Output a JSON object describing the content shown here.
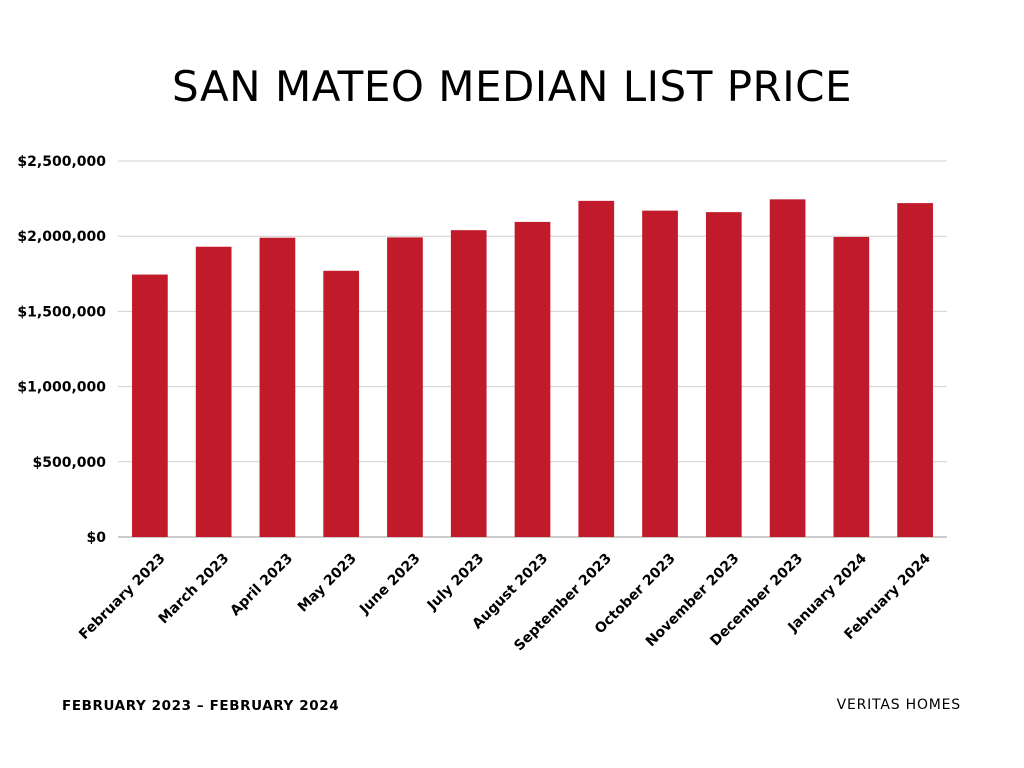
{
  "chart_data": {
    "type": "bar",
    "title": "SAN MATEO MEDIAN LIST PRICE",
    "xlabel": "",
    "ylabel": "",
    "categories": [
      "February 2023",
      "March 2023",
      "April 2023",
      "May 2023",
      "June 2023",
      "July 2023",
      "August 2023",
      "September 2023",
      "October 2023",
      "November 2023",
      "December 2023",
      "January 2024",
      "February 2024"
    ],
    "values": [
      1745000,
      1930000,
      1990000,
      1770000,
      1992000,
      2040000,
      2095000,
      2235000,
      2170000,
      2160000,
      2245000,
      1995000,
      2220000
    ],
    "ylim": [
      0,
      2500000
    ],
    "yticks": [
      0,
      500000,
      1000000,
      1500000,
      2000000,
      2500000
    ],
    "ytick_labels": [
      "$0",
      "$500,000",
      "$1,000,000",
      "$1,500,000",
      "$2,000,000",
      "$2,500,000"
    ],
    "bar_color": "#C11B2B",
    "grid": true,
    "legend": "none"
  },
  "footer": {
    "date_range": "FEBRUARY 2023 – FEBRUARY 2024",
    "brand": "VERITAS HOMES"
  }
}
